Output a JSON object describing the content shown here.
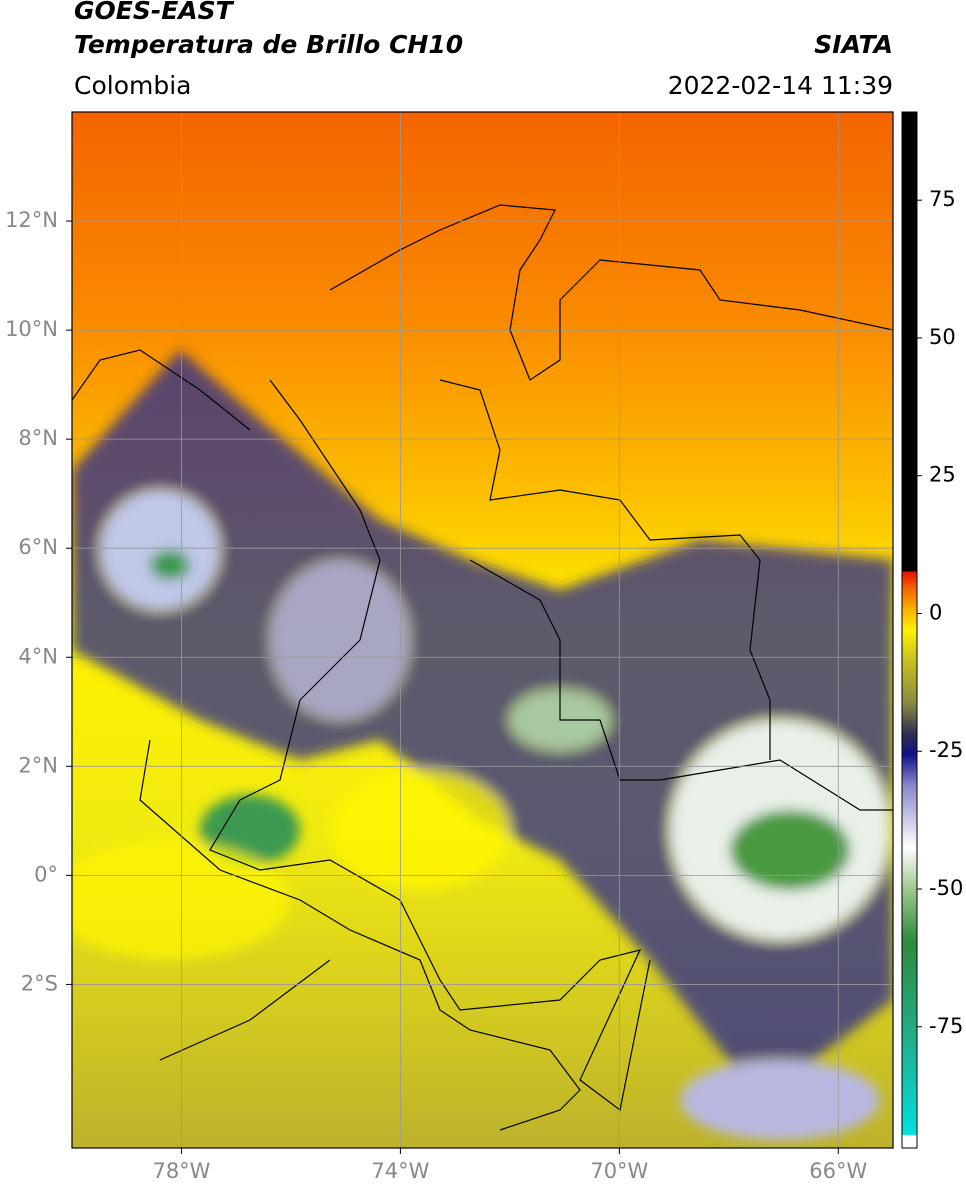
{
  "header": {
    "title_line1": "GOES-EAST",
    "title_line2": "Temperatura de Brillo CH10",
    "source": "SIATA",
    "region": "Colombia",
    "timestamp": "2022-02-14 11:39"
  },
  "map": {
    "lon_range": [
      -80,
      -65
    ],
    "lat_range": [
      -5,
      14
    ],
    "lon_ticks": [
      {
        "value": -78,
        "label": "78°W"
      },
      {
        "value": -74,
        "label": "74°W"
      },
      {
        "value": -70,
        "label": "70°W"
      },
      {
        "value": -66,
        "label": "66°W"
      }
    ],
    "lat_ticks": [
      {
        "value": 12,
        "label": "12°N"
      },
      {
        "value": 10,
        "label": "10°N"
      },
      {
        "value": 8,
        "label": "8°N"
      },
      {
        "value": 6,
        "label": "6°N"
      },
      {
        "value": 4,
        "label": "4°N"
      },
      {
        "value": 2,
        "label": "2°N"
      },
      {
        "value": 0,
        "label": "0°"
      },
      {
        "value": -2,
        "label": "2°S"
      }
    ]
  },
  "colorbar": {
    "range": [
      -97,
      91
    ],
    "ticks": [
      75,
      50,
      25,
      0,
      -25,
      -50,
      -75
    ]
  }
}
